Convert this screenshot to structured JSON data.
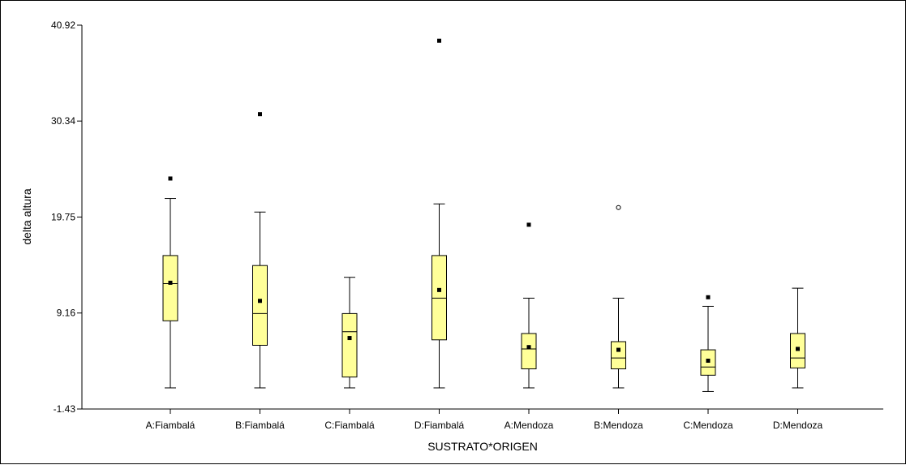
{
  "chart_data": {
    "type": "box",
    "xlabel": "SUSTRATO*ORIGEN",
    "ylabel": "delta altura",
    "ylim": [
      -1.43,
      40.92
    ],
    "yticks": [
      "-1.43",
      "9.16",
      "19.75",
      "30.34",
      "40.92"
    ],
    "ytick_values": [
      -1.43,
      9.16,
      19.75,
      30.34,
      40.92
    ],
    "grid": false,
    "legend": "none",
    "box_fill": "#ffff99",
    "box_stroke": "#000000",
    "categories": [
      "A:Fiambalá",
      "B:Fiambalá",
      "C:Fiambalá",
      "D:Fiambalá",
      "A:Mendoza",
      "B:Mendoza",
      "C:Mendoza",
      "D:Mendoza"
    ],
    "boxes": [
      {
        "whisker_low": 0.9,
        "q1": 8.3,
        "median": 12.4,
        "q3": 15.5,
        "whisker_high": 21.8,
        "mean": 12.5,
        "outliers": [],
        "extremes": [
          24.0
        ]
      },
      {
        "whisker_low": 0.9,
        "q1": 5.6,
        "median": 9.1,
        "q3": 14.4,
        "whisker_high": 20.3,
        "mean": 10.5,
        "outliers": [],
        "extremes": [
          31.1
        ]
      },
      {
        "whisker_low": 0.9,
        "q1": 2.1,
        "median": 7.1,
        "q3": 9.1,
        "whisker_high": 13.1,
        "mean": 6.4,
        "outliers": [],
        "extremes": []
      },
      {
        "whisker_low": 0.9,
        "q1": 6.2,
        "median": 10.8,
        "q3": 15.5,
        "whisker_high": 21.2,
        "mean": 11.7,
        "outliers": [],
        "extremes": [
          39.2
        ]
      },
      {
        "whisker_low": 0.9,
        "q1": 3.0,
        "median": 5.2,
        "q3": 6.9,
        "whisker_high": 10.8,
        "mean": 5.4,
        "outliers": [],
        "extremes": [
          18.9
        ]
      },
      {
        "whisker_low": 0.9,
        "q1": 3.0,
        "median": 4.2,
        "q3": 6.0,
        "whisker_high": 10.8,
        "mean": 5.1,
        "outliers": [
          20.8
        ],
        "extremes": []
      },
      {
        "whisker_low": 0.5,
        "q1": 2.3,
        "median": 3.2,
        "q3": 5.1,
        "whisker_high": 9.9,
        "mean": 3.9,
        "outliers": [],
        "extremes": [
          10.9
        ]
      },
      {
        "whisker_low": 0.9,
        "q1": 3.1,
        "median": 4.2,
        "q3": 6.9,
        "whisker_high": 11.9,
        "mean": 5.2,
        "outliers": [],
        "extremes": []
      }
    ]
  }
}
